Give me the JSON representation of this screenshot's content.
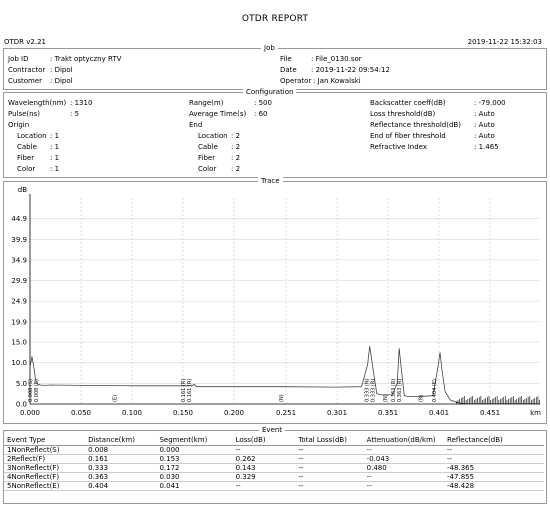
{
  "report": {
    "title": "OTDR REPORT",
    "version": "OTDR v2.21",
    "datetime": "2019-11-22 15:32:03"
  },
  "job": {
    "section_label": "Job",
    "job_id_label": "Job ID",
    "job_id": ": Trakt optyczny RTV",
    "contractor_label": "Contractor",
    "contractor": ": Dipol",
    "customer_label": "Customer",
    "customer": ": Dipol",
    "file_label": "File",
    "file": ": File_0130.sor",
    "date_label": "Date",
    "date": ": 2019-11-22 09:54:12",
    "operator_label": "Operator",
    "operator": ": Jan Kowalski"
  },
  "config": {
    "section_label": "Configuration",
    "wavelength_label": "Wavelength(nm)",
    "wavelength": ": 1310",
    "pulse_label": "Pulse(ns)",
    "pulse": ": 5",
    "origin_label": "Origin",
    "origin_location_label": "Location",
    "origin_location": ": 1",
    "origin_cable_label": "Cable",
    "origin_cable": ": 1",
    "origin_fiber_label": "Fiber",
    "origin_fiber": ": 1",
    "origin_color_label": "Color",
    "origin_color": ": 1",
    "range_label": "Range(m)",
    "range": ": 500",
    "avg_time_label": "Average Time(s)",
    "avg_time": ": 60",
    "end_label": "End",
    "end_location_label": "Location",
    "end_location": ": 2",
    "end_cable_label": "Cable",
    "end_cable": ": 2",
    "end_fiber_label": "Fiber",
    "end_fiber": ": 2",
    "end_color_label": "Color",
    "end_color": ": 2",
    "backscatter_label": "Backscatter coeff(dB)",
    "backscatter": ": -79.000",
    "loss_thr_label": "Loss threshold(dB)",
    "loss_thr": ": Auto",
    "refl_thr_label": "Reflectance threshold(dB)",
    "refl_thr": ": Auto",
    "eof_thr_label": "End of fiber threshold",
    "eof_thr": ": Auto",
    "refr_index_label": "Refractive Index",
    "refr_index": ": 1.465"
  },
  "trace": {
    "section_label": "Trace"
  },
  "chart_data": {
    "type": "line",
    "ylabel": "dB",
    "xlabel": "km",
    "yticks": [
      "44.9",
      "39.9",
      "34.9",
      "29.9",
      "24.9",
      "19.9",
      "15.0",
      "10.0",
      "5.0",
      "0.0"
    ],
    "ytick_values": [
      44.9,
      39.9,
      34.9,
      29.9,
      24.9,
      19.9,
      15.0,
      10.0,
      5.0,
      0.0
    ],
    "xticks": [
      "0.000",
      "0.050",
      "0.100",
      "0.150",
      "0.200",
      "0.251",
      "0.301",
      "0.351",
      "0.401",
      "0.451"
    ],
    "xtick_values": [
      0.0,
      0.05,
      0.1,
      0.15,
      0.2,
      0.251,
      0.301,
      0.351,
      0.401,
      0.451
    ],
    "xlim": [
      0,
      0.5
    ],
    "ylim": [
      0,
      49.9
    ],
    "grid": true,
    "series": [
      {
        "color": "#444444",
        "x": [
          0.0,
          0.002,
          0.004,
          0.006,
          0.008,
          0.01,
          0.015,
          0.02,
          0.05,
          0.1,
          0.15,
          0.159,
          0.161,
          0.163,
          0.2,
          0.25,
          0.3,
          0.325,
          0.331,
          0.333,
          0.336,
          0.34,
          0.345,
          0.355,
          0.36,
          0.362,
          0.364,
          0.367,
          0.372,
          0.38,
          0.395,
          0.4,
          0.402,
          0.404,
          0.407,
          0.412,
          0.418,
          0.422,
          0.43,
          0.5
        ],
        "y": [
          9.0,
          11.5,
          8.5,
          5.0,
          4.8,
          4.6,
          4.5,
          4.6,
          4.5,
          4.4,
          4.4,
          4.4,
          4.8,
          4.2,
          4.2,
          4.2,
          4.1,
          4.2,
          9.5,
          14.0,
          9.0,
          2.5,
          2.2,
          2.2,
          5.0,
          13.5,
          8.5,
          2.0,
          1.8,
          1.8,
          2.0,
          9.0,
          12.5,
          8.0,
          3.0,
          1.0,
          0.4,
          0.2,
          0.1,
          0.1
        ]
      }
    ],
    "annotations": [
      "0.008 (S)",
      "0.008 (S)",
      "(E)",
      "0.161 (R)",
      "0.161 (R)",
      "(N)",
      "0.333 (N)",
      "0.333 (R)",
      "(N)",
      "0.363 (R)",
      "0.363 (R)",
      "(R)",
      "0.404 (E)"
    ]
  },
  "event": {
    "section_label": "Event",
    "headers": [
      "Event Type",
      "Distance(km)",
      "Segment(km)",
      "Loss(dB)",
      "Total Loss(dB)",
      "Attenuation(dB/km)",
      "Reflectance(dB)"
    ],
    "rows": [
      [
        "1NonReflect(S)",
        "0.008",
        "0.000",
        "--",
        "--",
        "--",
        "--"
      ],
      [
        "2Reflect(F)",
        "0.161",
        "0.153",
        "0.262",
        "--",
        "-0.043",
        "--"
      ],
      [
        "3NonReflect(F)",
        "0.333",
        "0.172",
        "0.143",
        "--",
        "0.480",
        "-48.365"
      ],
      [
        "4NonReflect(F)",
        "0.363",
        "0.030",
        "0.329",
        "--",
        "--",
        "-47.855"
      ],
      [
        "5NonReflect(E)",
        "0.404",
        "0.041",
        "--",
        "--",
        "--",
        "-48.428"
      ]
    ]
  }
}
